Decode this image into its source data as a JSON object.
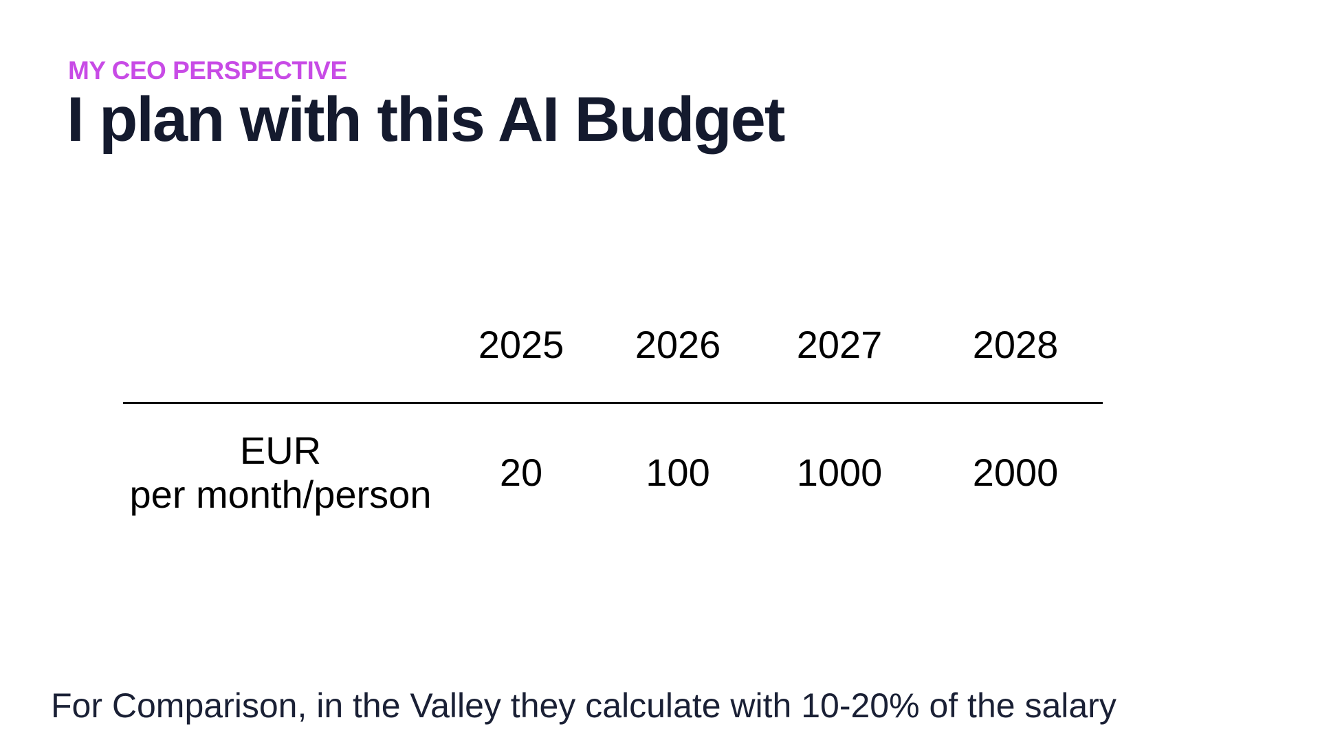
{
  "header": {
    "kicker": "MY CEO PERSPECTIVE",
    "title": "I plan with this AI Budget"
  },
  "table": {
    "columns": [
      "2025",
      "2026",
      "2027",
      "2028"
    ],
    "rows": [
      {
        "label": [
          "EUR",
          "per month/person"
        ],
        "cells": [
          "20",
          "100",
          "1000",
          "2000"
        ]
      }
    ]
  },
  "footer": "For Comparison, in the Valley they calculate with 10-20% of the salary"
}
